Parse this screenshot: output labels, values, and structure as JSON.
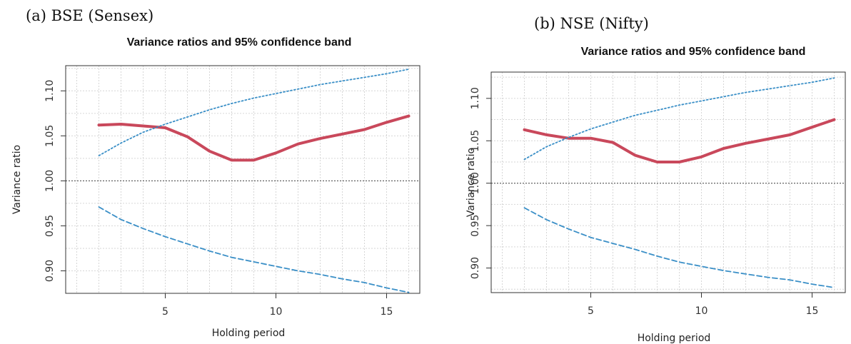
{
  "panels": [
    {
      "label": "(a)  BSE (Sensex)"
    },
    {
      "label": "(b) NSE (Nifty)"
    }
  ],
  "colors": {
    "vr_line": "#c9485b",
    "upper_band": "#3a8fc7",
    "lower_band": "#3a8fc7",
    "reference": "#444444"
  },
  "chart_data": [
    {
      "type": "line",
      "title": "Variance ratios and 95% confidence band",
      "xlabel": "Holding period",
      "ylabel": "Variance ratio",
      "xlim": [
        0.5,
        16.5
      ],
      "ylim": [
        0.875,
        1.128
      ],
      "xticks": [
        5,
        10,
        15
      ],
      "yticks": [
        0.9,
        0.95,
        1.0,
        1.05,
        1.1
      ],
      "ytick_labels": [
        "0.90",
        "0.95",
        "1.00",
        "1.05",
        "1.10"
      ],
      "reference_line": 1.0,
      "grid": true,
      "x": [
        2,
        3,
        4,
        5,
        6,
        7,
        8,
        9,
        10,
        11,
        12,
        13,
        14,
        15,
        16
      ],
      "series": [
        {
          "key": "vr",
          "style": "thick-solid",
          "values": [
            1.062,
            1.063,
            1.061,
            1.059,
            1.049,
            1.033,
            1.023,
            1.023,
            1.031,
            1.041,
            1.047,
            1.052,
            1.057,
            1.065,
            1.072
          ]
        },
        {
          "key": "upper",
          "style": "dotted",
          "values": [
            1.028,
            1.042,
            1.054,
            1.063,
            1.071,
            1.079,
            1.086,
            1.092,
            1.097,
            1.102,
            1.107,
            1.111,
            1.115,
            1.119,
            1.124
          ]
        },
        {
          "key": "lower",
          "style": "dashed",
          "values": [
            0.971,
            0.957,
            0.947,
            0.938,
            0.93,
            0.922,
            0.915,
            0.91,
            0.905,
            0.9,
            0.896,
            0.891,
            0.887,
            0.881,
            0.876
          ]
        }
      ]
    },
    {
      "type": "line",
      "title": "Variance ratios and 95% confidence band",
      "xlabel": "Holding period",
      "ylabel": "Variance ratio",
      "xlim": [
        0.5,
        16.5
      ],
      "ylim": [
        0.871,
        1.131
      ],
      "xticks": [
        5,
        10,
        15
      ],
      "yticks": [
        0.9,
        0.95,
        1.0,
        1.05,
        1.1
      ],
      "ytick_labels": [
        "0.90",
        "0.95",
        "1.00",
        "1.05",
        "1.10"
      ],
      "reference_line": 1.0,
      "grid": true,
      "x": [
        2,
        3,
        4,
        5,
        6,
        7,
        8,
        9,
        10,
        11,
        12,
        13,
        14,
        15,
        16
      ],
      "series": [
        {
          "key": "vr",
          "style": "thick-solid",
          "values": [
            1.063,
            1.057,
            1.053,
            1.053,
            1.048,
            1.033,
            1.025,
            1.025,
            1.031,
            1.041,
            1.047,
            1.052,
            1.057,
            1.066,
            1.075
          ]
        },
        {
          "key": "upper",
          "style": "dotted",
          "values": [
            1.028,
            1.043,
            1.054,
            1.064,
            1.072,
            1.08,
            1.086,
            1.092,
            1.097,
            1.102,
            1.107,
            1.111,
            1.115,
            1.119,
            1.124
          ]
        },
        {
          "key": "lower",
          "style": "dashed",
          "values": [
            0.971,
            0.957,
            0.946,
            0.936,
            0.929,
            0.922,
            0.914,
            0.907,
            0.902,
            0.897,
            0.893,
            0.889,
            0.886,
            0.881,
            0.877
          ]
        }
      ]
    }
  ]
}
